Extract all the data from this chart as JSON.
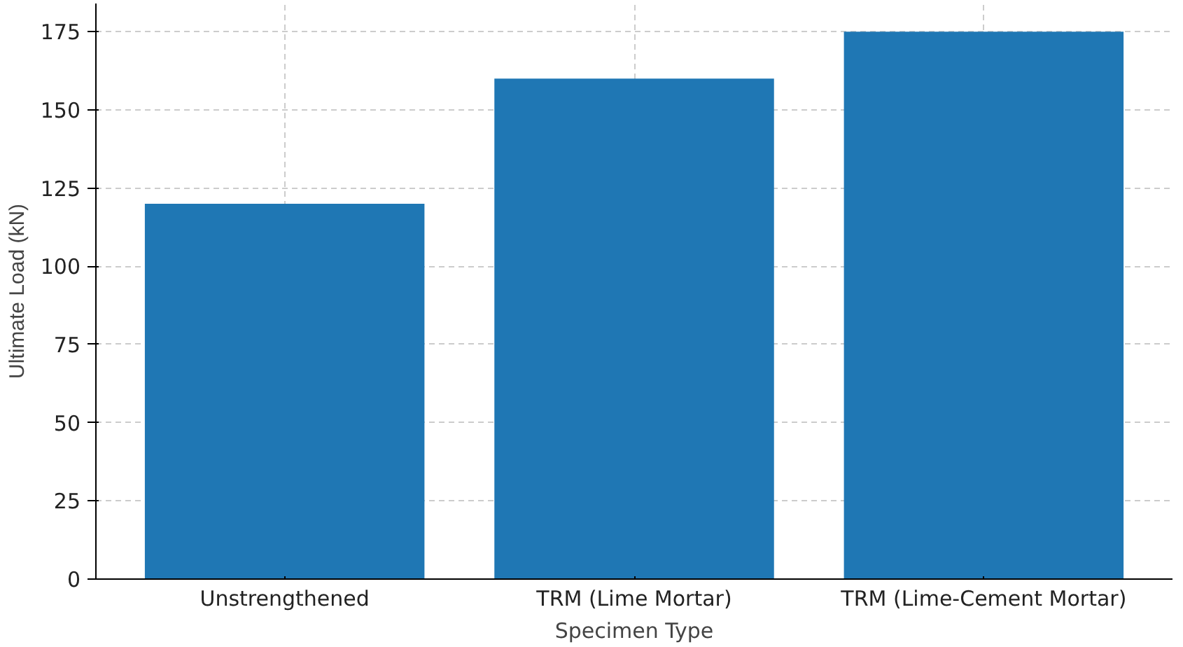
{
  "chart_data": {
    "type": "bar",
    "xlabel": "Specimen Type",
    "ylabel": "Ultimate Load (kN)",
    "categories": [
      "Unstrengthened",
      "TRM (Lime Mortar)",
      "TRM (Lime-Cement Mortar)"
    ],
    "values": [
      120,
      160,
      175
    ],
    "color": "#1f77b4",
    "ylim": [
      0,
      184
    ],
    "yticks": [
      0,
      25,
      50,
      75,
      100,
      125,
      150,
      175
    ],
    "grid": true
  }
}
